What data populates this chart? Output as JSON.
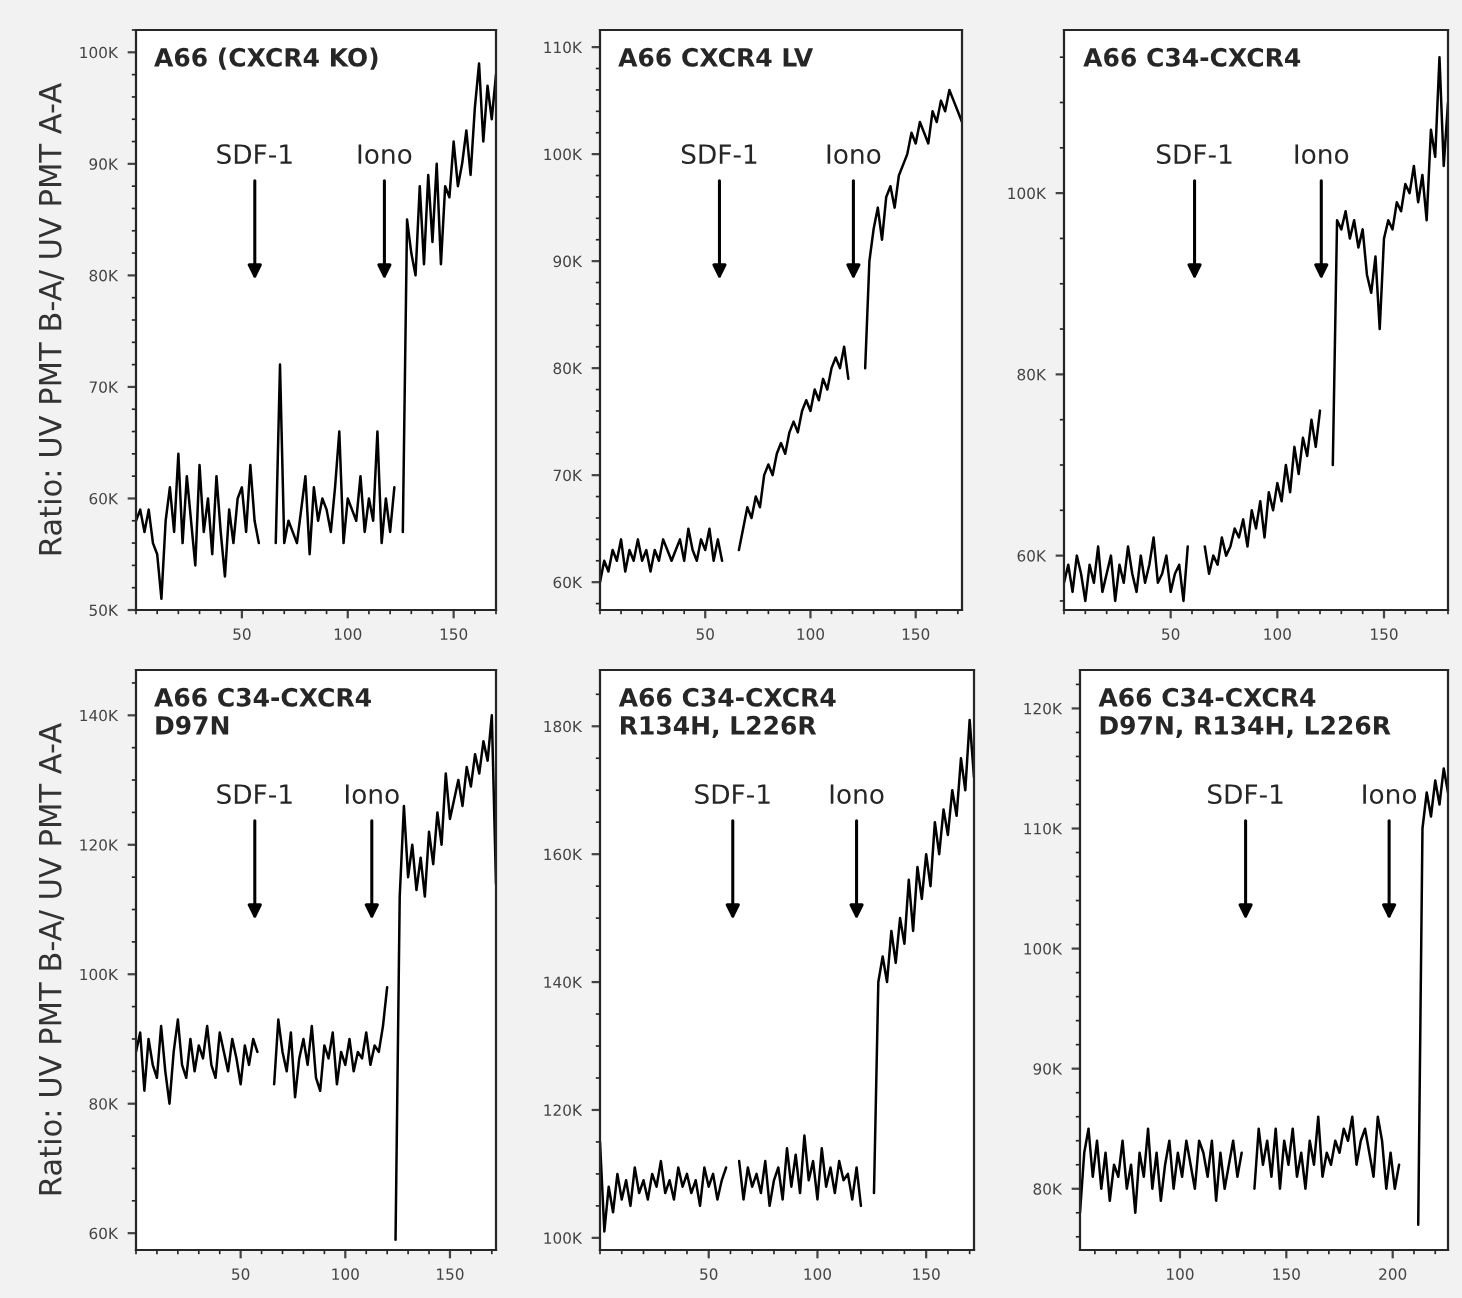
{
  "chart_data": [
    {
      "type": "line",
      "title": "A66 (CXCR4 KO)",
      "ylabel": "Ratio: UV PMT B-A/ UV PMT A-A",
      "xlim": [
        0,
        170
      ],
      "xticks": [
        50,
        100,
        150
      ],
      "ylim": [
        50,
        102
      ],
      "yticks": [
        {
          "value": 50,
          "label": "50K"
        },
        {
          "value": 60,
          "label": "60K"
        },
        {
          "value": 70,
          "label": "70K"
        },
        {
          "value": 80,
          "label": "80K"
        },
        {
          "value": 90,
          "label": "90K"
        },
        {
          "value": 100,
          "label": "100K"
        }
      ],
      "annotations": [
        "SDF-1",
        "Iono"
      ],
      "series": [
        {
          "color": "#000000",
          "x": [
            0,
            2,
            4,
            6,
            8,
            10,
            12,
            14,
            16,
            18,
            20,
            22,
            24,
            26,
            28,
            30,
            32,
            34,
            36,
            38,
            40,
            42,
            44,
            46,
            48,
            50,
            52,
            54,
            56,
            58,
            62,
            66,
            68,
            70,
            72,
            74,
            76,
            78,
            80,
            82,
            84,
            86,
            88,
            90,
            92,
            94,
            96,
            98,
            100,
            102,
            104,
            106,
            108,
            110,
            112,
            114,
            116,
            118,
            120,
            122,
            124,
            126,
            128,
            130,
            132,
            134,
            136,
            138,
            140,
            142,
            144,
            146,
            148,
            150,
            152,
            154,
            156,
            158,
            160,
            162,
            164,
            166,
            168,
            170
          ],
          "values": [
            58,
            59,
            57,
            59,
            56,
            55,
            51,
            58,
            61,
            57,
            64,
            56,
            62,
            58,
            54,
            63,
            57,
            60,
            55,
            62,
            57,
            53,
            59,
            56,
            60,
            61,
            57,
            63,
            58,
            56,
            null,
            56,
            72,
            56,
            58,
            57,
            56,
            59,
            62,
            55,
            61,
            58,
            60,
            59,
            57,
            61,
            66,
            56,
            60,
            59,
            58,
            62,
            57,
            60,
            58,
            66,
            56,
            60,
            57,
            61,
            null,
            57,
            85,
            82,
            80,
            88,
            81,
            89,
            83,
            90,
            81,
            88,
            87,
            92,
            88,
            90,
            93,
            89,
            95,
            99,
            92,
            97,
            94,
            98
          ]
        }
      ]
    },
    {
      "type": "line",
      "title": "A66 CXCR4 LV",
      "xlim": [
        0,
        172
      ],
      "xticks": [
        50,
        100,
        150
      ],
      "ylim": [
        57.4,
        111.6
      ],
      "yticks": [
        {
          "value": 60,
          "label": "60K"
        },
        {
          "value": 70,
          "label": "70K"
        },
        {
          "value": 80,
          "label": "80K"
        },
        {
          "value": 90,
          "label": "90K"
        },
        {
          "value": 100,
          "label": "100K"
        },
        {
          "value": 110,
          "label": "110K"
        }
      ],
      "annotations": [
        "SDF-1",
        "Iono"
      ],
      "series": [
        {
          "color": "#000000",
          "x": [
            0,
            2,
            4,
            6,
            8,
            10,
            12,
            14,
            16,
            18,
            20,
            22,
            24,
            26,
            28,
            30,
            32,
            34,
            36,
            38,
            40,
            42,
            44,
            46,
            48,
            50,
            52,
            54,
            56,
            58,
            62,
            66,
            68,
            70,
            72,
            74,
            76,
            78,
            80,
            82,
            84,
            86,
            88,
            90,
            92,
            94,
            96,
            98,
            100,
            102,
            104,
            106,
            108,
            110,
            112,
            114,
            116,
            118,
            122,
            126,
            128,
            130,
            132,
            134,
            136,
            138,
            140,
            142,
            144,
            146,
            148,
            150,
            152,
            154,
            156,
            158,
            160,
            162,
            164,
            166,
            168,
            170,
            172
          ],
          "values": [
            60,
            62,
            61,
            63,
            62,
            64,
            61,
            63,
            62,
            64,
            62,
            63,
            61,
            63,
            62,
            64,
            63,
            62,
            63,
            64,
            62,
            65,
            63,
            62,
            64,
            63,
            65,
            62,
            64,
            62,
            null,
            63,
            65,
            67,
            66,
            68,
            67,
            70,
            71,
            70,
            72,
            73,
            72,
            74,
            75,
            74,
            76,
            77,
            76,
            78,
            77,
            79,
            78,
            80,
            81,
            80,
            82,
            79,
            null,
            80,
            90,
            93,
            95,
            92,
            96,
            97,
            95,
            98,
            99,
            100,
            102,
            101,
            103,
            102,
            101,
            104,
            103,
            105,
            104,
            106,
            105,
            104,
            103
          ]
        }
      ]
    },
    {
      "type": "line",
      "title": "A66 C34-CXCR4",
      "xlim": [
        0,
        180
      ],
      "xticks": [
        50,
        100,
        150
      ],
      "ylim": [
        54,
        118
      ],
      "yticks": [
        {
          "value": 60,
          "label": "60K"
        },
        {
          "value": 80,
          "label": "80K"
        },
        {
          "value": 100,
          "label": "100K"
        }
      ],
      "annotations": [
        "SDF-1",
        "Iono"
      ],
      "series": [
        {
          "color": "#000000",
          "x": [
            0,
            2,
            4,
            6,
            8,
            10,
            12,
            14,
            16,
            18,
            20,
            22,
            24,
            26,
            28,
            30,
            32,
            34,
            36,
            38,
            40,
            42,
            44,
            46,
            48,
            50,
            52,
            54,
            56,
            58,
            62,
            66,
            68,
            70,
            72,
            74,
            76,
            78,
            80,
            82,
            84,
            86,
            88,
            90,
            92,
            94,
            96,
            98,
            100,
            102,
            104,
            106,
            108,
            110,
            112,
            114,
            116,
            118,
            120,
            122,
            126,
            128,
            130,
            132,
            134,
            136,
            138,
            140,
            142,
            144,
            146,
            148,
            150,
            152,
            154,
            156,
            158,
            160,
            162,
            164,
            166,
            168,
            170,
            172,
            174,
            176,
            178,
            180
          ],
          "values": [
            57,
            59,
            56,
            60,
            58,
            55,
            59,
            57,
            61,
            56,
            58,
            60,
            55,
            59,
            57,
            61,
            58,
            56,
            60,
            57,
            59,
            62,
            57,
            58,
            60,
            56,
            58,
            59,
            55,
            61,
            null,
            61,
            58,
            60,
            59,
            62,
            60,
            61,
            63,
            62,
            64,
            61,
            65,
            63,
            66,
            62,
            67,
            65,
            68,
            66,
            70,
            67,
            72,
            69,
            73,
            71,
            75,
            72,
            76,
            null,
            70,
            97,
            96,
            98,
            95,
            97,
            94,
            96,
            91,
            89,
            93,
            85,
            95,
            97,
            96,
            99,
            98,
            101,
            100,
            103,
            99,
            102,
            97,
            107,
            104,
            115,
            103,
            110
          ]
        }
      ]
    },
    {
      "type": "line",
      "title": "A66 C34-CXCR4\nD97N",
      "ylabel": "Ratio: UV PMT B-A/ UV PMT A-A",
      "xlim": [
        0,
        172
      ],
      "xticks": [
        50,
        100,
        150
      ],
      "ylim": [
        57.4,
        147
      ],
      "yticks": [
        {
          "value": 60,
          "label": "60K"
        },
        {
          "value": 80,
          "label": "80K"
        },
        {
          "value": 100,
          "label": "100K"
        },
        {
          "value": 120,
          "label": "120K"
        },
        {
          "value": 140,
          "label": "140K"
        }
      ],
      "annotations": [
        "SDF-1",
        "Iono"
      ],
      "series": [
        {
          "color": "#000000",
          "x": [
            0,
            2,
            4,
            6,
            8,
            10,
            12,
            14,
            16,
            18,
            20,
            22,
            24,
            26,
            28,
            30,
            32,
            34,
            36,
            38,
            40,
            42,
            44,
            46,
            48,
            50,
            52,
            54,
            56,
            58,
            62,
            66,
            68,
            70,
            72,
            74,
            76,
            78,
            80,
            82,
            84,
            86,
            88,
            90,
            92,
            94,
            96,
            98,
            100,
            102,
            104,
            106,
            108,
            110,
            112,
            114,
            116,
            118,
            120,
            122,
            124,
            126,
            128,
            130,
            132,
            134,
            136,
            138,
            140,
            142,
            144,
            146,
            148,
            150,
            152,
            154,
            156,
            158,
            160,
            162,
            164,
            166,
            168,
            170,
            172
          ],
          "values": [
            88,
            91,
            82,
            90,
            86,
            84,
            92,
            85,
            80,
            88,
            93,
            86,
            84,
            90,
            85,
            89,
            87,
            92,
            86,
            84,
            91,
            88,
            85,
            90,
            87,
            83,
            89,
            86,
            90,
            88,
            null,
            83,
            93,
            88,
            85,
            91,
            81,
            87,
            90,
            86,
            92,
            84,
            82,
            89,
            87,
            91,
            83,
            88,
            86,
            90,
            85,
            88,
            87,
            91,
            86,
            89,
            88,
            92,
            98,
            null,
            59,
            112,
            126,
            115,
            120,
            113,
            118,
            112,
            122,
            117,
            125,
            120,
            131,
            124,
            127,
            130,
            126,
            132,
            129,
            134,
            131,
            136,
            133,
            140,
            114
          ]
        }
      ]
    },
    {
      "type": "line",
      "title": "A66 C34-CXCR4\nR134H, L226R",
      "xlim": [
        0,
        172
      ],
      "xticks": [
        50,
        100,
        150
      ],
      "ylim": [
        98.1,
        188.8
      ],
      "yticks": [
        {
          "value": 100,
          "label": "100K"
        },
        {
          "value": 120,
          "label": "120K"
        },
        {
          "value": 140,
          "label": "140K"
        },
        {
          "value": 160,
          "label": "160K"
        },
        {
          "value": 180,
          "label": "180K"
        }
      ],
      "annotations": [
        "SDF-1",
        "Iono"
      ],
      "series": [
        {
          "color": "#000000",
          "x": [
            0,
            2,
            4,
            6,
            8,
            10,
            12,
            14,
            16,
            18,
            20,
            22,
            24,
            26,
            28,
            30,
            32,
            34,
            36,
            38,
            40,
            42,
            44,
            46,
            48,
            50,
            52,
            54,
            56,
            58,
            61,
            64,
            66,
            68,
            70,
            72,
            74,
            76,
            78,
            80,
            82,
            84,
            86,
            88,
            90,
            92,
            94,
            96,
            98,
            100,
            102,
            104,
            106,
            108,
            110,
            112,
            114,
            116,
            118,
            120,
            123,
            126,
            128,
            130,
            132,
            134,
            136,
            138,
            140,
            142,
            144,
            146,
            148,
            150,
            152,
            154,
            156,
            158,
            160,
            162,
            164,
            166,
            168,
            170,
            172
          ],
          "values": [
            115,
            101,
            108,
            104,
            110,
            106,
            109,
            105,
            111,
            107,
            109,
            106,
            110,
            108,
            112,
            107,
            109,
            106,
            111,
            108,
            110,
            107,
            109,
            105,
            111,
            108,
            110,
            106,
            109,
            111,
            null,
            112,
            106,
            111,
            108,
            110,
            107,
            112,
            105,
            109,
            111,
            106,
            114,
            108,
            113,
            107,
            116,
            109,
            112,
            106,
            114,
            108,
            111,
            107,
            112,
            109,
            110,
            106,
            111,
            105,
            null,
            107,
            140,
            144,
            140,
            148,
            143,
            150,
            146,
            156,
            148,
            158,
            153,
            160,
            155,
            165,
            160,
            167,
            163,
            170,
            166,
            175,
            170,
            181,
            172
          ]
        }
      ]
    },
    {
      "type": "line",
      "title": "A66 C34-CXCR4\nD97N, R134H, L226R",
      "xlim": [
        53,
        226
      ],
      "xticks": [
        100,
        150,
        200
      ],
      "ylim": [
        74.9,
        123.2
      ],
      "yticks": [
        {
          "value": 80,
          "label": "80K"
        },
        {
          "value": 90,
          "label": "90K"
        },
        {
          "value": 100,
          "label": "100K"
        },
        {
          "value": 110,
          "label": "110K"
        },
        {
          "value": 120,
          "label": "120K"
        }
      ],
      "annotations": [
        "SDF-1",
        "Iono"
      ],
      "series": [
        {
          "color": "#000000",
          "x": [
            53,
            55,
            57,
            59,
            61,
            63,
            65,
            67,
            69,
            71,
            73,
            75,
            77,
            79,
            81,
            83,
            85,
            87,
            89,
            91,
            93,
            95,
            97,
            99,
            101,
            103,
            105,
            107,
            109,
            111,
            113,
            115,
            117,
            119,
            121,
            123,
            125,
            127,
            129,
            132,
            135,
            137,
            139,
            141,
            143,
            145,
            147,
            149,
            151,
            153,
            155,
            157,
            159,
            161,
            163,
            165,
            167,
            169,
            171,
            173,
            175,
            177,
            179,
            181,
            183,
            185,
            187,
            189,
            191,
            193,
            195,
            197,
            199,
            201,
            203,
            208,
            212,
            214,
            216,
            218,
            220,
            222,
            224,
            226
          ],
          "values": [
            78,
            83,
            85,
            81,
            84,
            80,
            83,
            79,
            82,
            81,
            84,
            80,
            82,
            78,
            83,
            81,
            85,
            80,
            83,
            79,
            82,
            84,
            80,
            83,
            81,
            84,
            82,
            80,
            84,
            83,
            81,
            84,
            79,
            83,
            80,
            82,
            84,
            81,
            83,
            null,
            80,
            85,
            82,
            84,
            81,
            85,
            80,
            84,
            82,
            85,
            81,
            83,
            80,
            84,
            82,
            86,
            81,
            83,
            82,
            84,
            83,
            85,
            84,
            86,
            82,
            84,
            85,
            83,
            81,
            86,
            84,
            80,
            83,
            80,
            82,
            null,
            77,
            110,
            113,
            111,
            114,
            112,
            115,
            113
          ]
        }
      ]
    }
  ]
}
